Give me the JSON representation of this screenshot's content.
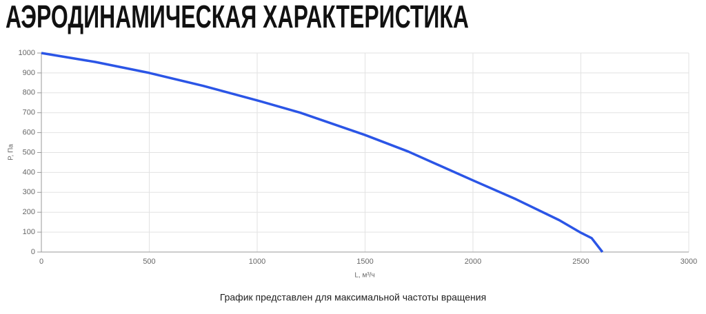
{
  "chart_data": {
    "type": "line",
    "title": "АЭРОДИНАМИЧЕСКАЯ ХАРАКТЕРИСТИКА",
    "x_label": "L, м³/ч",
    "y_label": "P, Па",
    "caption": "График представлен для максимальной частоты вращения",
    "x": [
      0,
      250,
      500,
      750,
      1000,
      1200,
      1500,
      1700,
      2000,
      2200,
      2400,
      2500,
      2550,
      2600
    ],
    "series": [
      {
        "color": "#2b55e6",
        "values": [
          1000,
          955,
          900,
          835,
          762,
          700,
          588,
          505,
          360,
          265,
          160,
          97,
          70,
          0
        ]
      }
    ],
    "xlim": [
      0,
      3000
    ],
    "xticks": [
      0,
      500,
      1000,
      1500,
      2000,
      2500,
      3000
    ],
    "ylim": [
      0,
      1000
    ],
    "yticks": [
      0,
      100,
      200,
      300,
      400,
      500,
      600,
      700,
      800,
      900,
      1000
    ],
    "grid": true
  }
}
